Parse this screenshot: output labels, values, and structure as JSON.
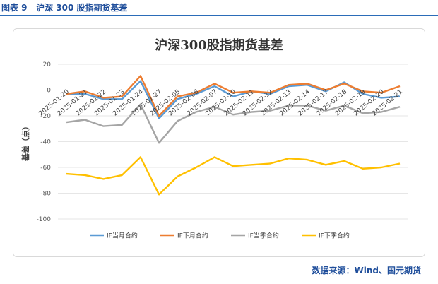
{
  "caption": {
    "figure_label": "图表 9",
    "title": "沪深 300 股指期货基差"
  },
  "source": "数据来源：Wind、国元期货",
  "chart_data": {
    "type": "line",
    "title": "沪深300股指期货基差",
    "ylabel": "基差（点）",
    "xlabel": "",
    "ylim": [
      -100,
      20
    ],
    "yticks": [
      20,
      0,
      -20,
      -40,
      -60,
      -80,
      -100
    ],
    "x": [
      "2025-01-20",
      "2025-01-21",
      "2025-01-22",
      "2025-01-23",
      "2025-01-24",
      "2025-01-27",
      "2025-02-05",
      "2025-02-06",
      "2025-02-07",
      "2025-02-10",
      "2025-02-11",
      "2025-02-12",
      "2025-02-13",
      "2025-02-14",
      "2025-02-17",
      "2025-02-18",
      "2025-02-19",
      "2025-02-20",
      "2025-02-21"
    ],
    "grid": true,
    "legend_position": "bottom",
    "series": [
      {
        "name": "IF当月合约",
        "color": "#5b9bd5",
        "values": [
          -3,
          -3,
          -7,
          -7,
          7,
          -22,
          -7,
          -3,
          3,
          -5,
          -1,
          -3,
          3,
          4,
          -1,
          6,
          -3,
          -6,
          -5
        ]
      },
      {
        "name": "IF下月合约",
        "color": "#ed7d31",
        "values": [
          -3,
          -1,
          -6,
          -5,
          11,
          -20,
          -5,
          -2,
          5,
          -2,
          -1,
          -2,
          4,
          5,
          0,
          5,
          -1,
          -2,
          3
        ]
      },
      {
        "name": "IF当季合约",
        "color": "#a5a5a5",
        "values": [
          -25,
          -23,
          -28,
          -27,
          -11,
          -41,
          -24,
          -17,
          -13,
          -19,
          -17,
          -16,
          -12,
          -12,
          -16,
          -12,
          -18,
          -17,
          -13
        ]
      },
      {
        "name": "IF下季合约",
        "color": "#ffc000",
        "values": [
          -65,
          -66,
          -69,
          -66,
          -52,
          -81,
          -67,
          -60,
          -52,
          -59,
          -58,
          -57,
          -53,
          -54,
          -58,
          -55,
          -61,
          -60,
          -57
        ]
      }
    ]
  }
}
